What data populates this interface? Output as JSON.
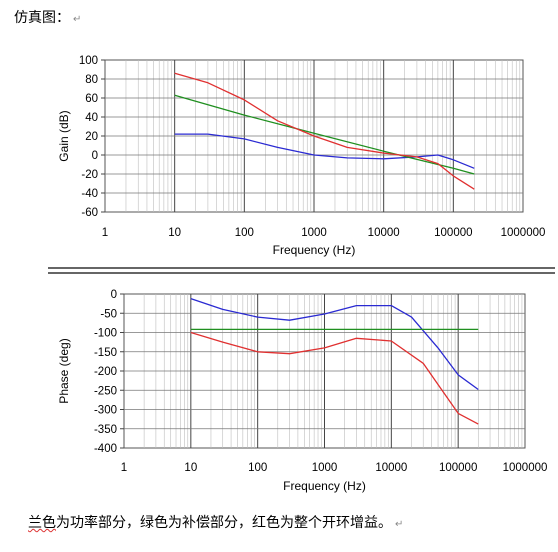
{
  "page": {
    "heading": "仿真图：",
    "return_mark": "↵",
    "caption_underlined": "兰色",
    "caption_rest": "为功率部分，绿色为补偿部分，红色为整个开环增益。",
    "colors": {
      "blue": "#2a2ad2",
      "green": "#1f8f1f",
      "red": "#e03030"
    }
  },
  "chart_data": [
    {
      "type": "line",
      "xscale": "log",
      "xlabel": "Frequency (Hz)",
      "ylabel": "Gain (dB)",
      "xlim": [
        1,
        1000000
      ],
      "ylim": [
        -60,
        100
      ],
      "xticks": [
        "1",
        "10",
        "100",
        "1000",
        "10000",
        "100000",
        "1000000"
      ],
      "yticks": [
        "100",
        "80",
        "60",
        "40",
        "20",
        "0",
        "-20",
        "-40",
        "-60"
      ],
      "grid": true,
      "series": [
        {
          "color": "#2a2ad2",
          "x": [
            10,
            30,
            100,
            300,
            1000,
            3000,
            10000,
            30000,
            60000,
            100000,
            200000
          ],
          "y": [
            22,
            22,
            17,
            8,
            0,
            -3,
            -4,
            -2,
            0,
            -5,
            -14
          ]
        },
        {
          "color": "#1f8f1f",
          "x": [
            10,
            100,
            1000,
            10000,
            100000,
            200000
          ],
          "y": [
            63,
            42,
            23,
            4,
            -14,
            -20
          ]
        },
        {
          "color": "#e03030",
          "x": [
            10,
            30,
            100,
            300,
            1000,
            3000,
            10000,
            30000,
            60000,
            100000,
            200000
          ],
          "y": [
            86,
            76,
            58,
            36,
            20,
            8,
            2,
            -2,
            -9,
            -22,
            -36
          ]
        }
      ]
    },
    {
      "type": "line",
      "xscale": "log",
      "xlabel": "Frequency (Hz)",
      "ylabel": "Phase (deg)",
      "xlim": [
        1,
        1000000
      ],
      "ylim": [
        -400,
        0
      ],
      "xticks": [
        "1",
        "10",
        "100",
        "1000",
        "10000",
        "100000",
        "1000000"
      ],
      "yticks": [
        "0",
        "-50",
        "-100",
        "-150",
        "-200",
        "-250",
        "-300",
        "-350",
        "-400"
      ],
      "grid": true,
      "series": [
        {
          "color": "#2a2ad2",
          "x": [
            10,
            30,
            100,
            300,
            1000,
            3000,
            10000,
            20000,
            50000,
            100000,
            200000
          ],
          "y": [
            -12,
            -40,
            -60,
            -68,
            -52,
            -30,
            -30,
            -60,
            -140,
            -210,
            -248
          ]
        },
        {
          "color": "#1f8f1f",
          "x": [
            10,
            1000,
            100000,
            200000
          ],
          "y": [
            -92,
            -92,
            -92,
            -92
          ]
        },
        {
          "color": "#e03030",
          "x": [
            10,
            30,
            100,
            300,
            1000,
            3000,
            10000,
            30000,
            100000,
            200000
          ],
          "y": [
            -100,
            -125,
            -150,
            -155,
            -140,
            -115,
            -122,
            -180,
            -310,
            -338
          ]
        }
      ]
    }
  ]
}
